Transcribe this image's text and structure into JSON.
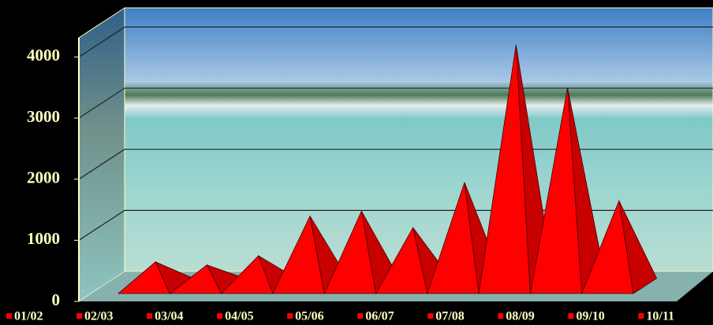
{
  "chart_data": {
    "type": "pyramid",
    "categories": [
      "01/02",
      "02/03",
      "03/04",
      "04/05",
      "05/06",
      "06/07",
      "07/08",
      "08/09",
      "09/10",
      "10/11"
    ],
    "values": [
      500,
      450,
      600,
      1250,
      1330,
      1060,
      1800,
      4050,
      3350,
      1500
    ],
    "color": "#ff0000",
    "ylim": [
      0,
      4250
    ],
    "yticks": [
      0,
      1000,
      2000,
      3000,
      4000
    ],
    "grid": true
  }
}
